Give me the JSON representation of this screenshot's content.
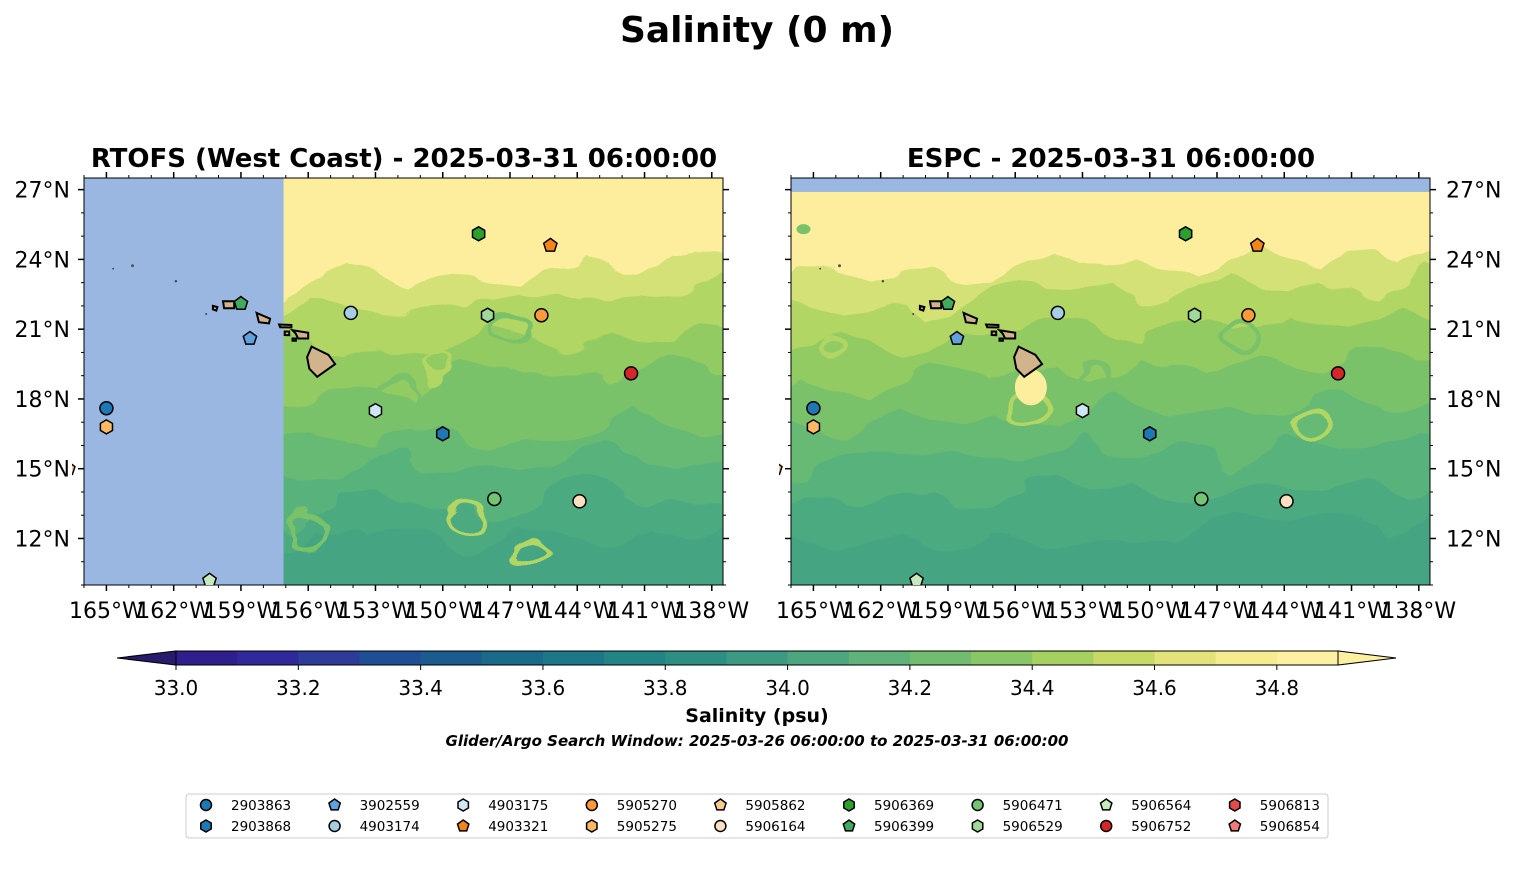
{
  "figure": {
    "title": "Salinity (0 m)",
    "search_window": "Glider/Argo Search Window: 2025-03-26 06:00:00 to 2025-03-31 06:00:00"
  },
  "map_extent": {
    "lon_min": -166.0,
    "lon_max": -137.5,
    "lat_min": 10.0,
    "lat_max": 27.5
  },
  "ticks": {
    "lon": [
      {
        "value": -165,
        "label": "165°W"
      },
      {
        "value": -162,
        "label": "162°W"
      },
      {
        "value": -159,
        "label": "159°W"
      },
      {
        "value": -156,
        "label": "156°W"
      },
      {
        "value": -153,
        "label": "153°W"
      },
      {
        "value": -150,
        "label": "150°W"
      },
      {
        "value": -147,
        "label": "147°W"
      },
      {
        "value": -144,
        "label": "144°W"
      },
      {
        "value": -141,
        "label": "141°W"
      },
      {
        "value": -138,
        "label": "138°W"
      }
    ],
    "lat": [
      {
        "value": 27,
        "label": "27°N"
      },
      {
        "value": 24,
        "label": "24°N"
      },
      {
        "value": 21,
        "label": "21°N"
      },
      {
        "value": 18,
        "label": "18°N"
      },
      {
        "value": 15,
        "label": "15°N"
      },
      {
        "value": 12,
        "label": "12°N"
      }
    ]
  },
  "panels": [
    {
      "id": "rtofs",
      "title": "RTOFS (West Coast) - 2025-03-31 06:00:00",
      "no_data_lon_max": -157.1
    },
    {
      "id": "espc",
      "title": "ESPC - 2025-03-31 06:00:00",
      "no_data_lat_min": 26.9
    }
  ],
  "colorbar": {
    "label": "Salinity (psu)",
    "min": 32.9,
    "max": 34.9,
    "step": 0.1,
    "ticks": [
      {
        "value": 33.0,
        "label": "33.0"
      },
      {
        "value": 33.2,
        "label": "33.2"
      },
      {
        "value": 33.4,
        "label": "33.4"
      },
      {
        "value": 33.6,
        "label": "33.6"
      },
      {
        "value": 33.8,
        "label": "33.8"
      },
      {
        "value": 34.0,
        "label": "34.0"
      },
      {
        "value": 34.2,
        "label": "34.2"
      },
      {
        "value": 34.4,
        "label": "34.4"
      },
      {
        "value": 34.6,
        "label": "34.6"
      },
      {
        "value": 34.8,
        "label": "34.8"
      }
    ],
    "colors": [
      "#2a1a6e",
      "#2e1f8c",
      "#30299a",
      "#2d3c99",
      "#1f4e94",
      "#1a5c8e",
      "#1a6a8a",
      "#1d7788",
      "#238485",
      "#2d8f84",
      "#3c9a83",
      "#4ca680",
      "#5fb27a",
      "#72bc70",
      "#89c666",
      "#a6d05f",
      "#c6da65",
      "#e3e37a",
      "#f5ec8f",
      "#fdf0a0"
    ]
  },
  "floats": [
    {
      "id": "2903863",
      "lon": -165.0,
      "lat": 17.6,
      "shape": "circle",
      "color": "#1f78b4"
    },
    {
      "id": "2903868",
      "lon": -150.0,
      "lat": 16.5,
      "shape": "hexagon",
      "color": "#1f78b4"
    },
    {
      "id": "3902559",
      "lon": -158.6,
      "lat": 20.6,
      "shape": "pentagon",
      "color": "#5fa2dd"
    },
    {
      "id": "4903174",
      "lon": -154.1,
      "lat": 21.7,
      "shape": "circle",
      "color": "#a6cee3"
    },
    {
      "id": "4903175",
      "lon": -153.0,
      "lat": 17.5,
      "shape": "hexagon",
      "color": "#cfe6f3"
    },
    {
      "id": "4903321",
      "lon": -145.2,
      "lat": 24.6,
      "shape": "pentagon",
      "color": "#f58518"
    },
    {
      "id": "5905270",
      "lon": -145.6,
      "lat": 21.6,
      "shape": "circle",
      "color": "#fb9a39"
    },
    {
      "id": "5905275",
      "lon": -165.0,
      "lat": 16.8,
      "shape": "hexagon",
      "color": "#fdb863"
    },
    {
      "id": "5905862",
      "lon": -166.7,
      "lat": 15.0,
      "shape": "pentagon",
      "color": "#fdcb8e"
    },
    {
      "id": "5906164",
      "lon": -143.9,
      "lat": 13.6,
      "shape": "circle",
      "color": "#fee0c0"
    },
    {
      "id": "5906369",
      "lon": -148.4,
      "lat": 25.1,
      "shape": "hexagon",
      "color": "#2ca02c"
    },
    {
      "id": "5906399",
      "lon": -159.0,
      "lat": 22.1,
      "shape": "pentagon",
      "color": "#41ab5d"
    },
    {
      "id": "5906471",
      "lon": -147.7,
      "lat": 13.7,
      "shape": "circle",
      "color": "#74c476"
    },
    {
      "id": "5906529",
      "lon": -148.0,
      "lat": 21.6,
      "shape": "hexagon",
      "color": "#a1d99b"
    },
    {
      "id": "5906564",
      "lon": -160.4,
      "lat": 10.2,
      "shape": "pentagon",
      "color": "#c7e9c0"
    },
    {
      "id": "5906752",
      "lon": -141.6,
      "lat": 19.1,
      "shape": "circle",
      "color": "#d62728"
    },
    {
      "id": "5906813",
      "lon": -141.6,
      "lat": 19.1,
      "shape": "hexagon",
      "color": "#e34a4a"
    },
    {
      "id": "5906854",
      "lon": -141.6,
      "lat": 19.1,
      "shape": "pentagon",
      "color": "#f07a7a"
    }
  ],
  "legend_columns": [
    [
      "2903863",
      "2903868"
    ],
    [
      "3902559",
      "4903174"
    ],
    [
      "4903175",
      "4903321"
    ],
    [
      "5905270",
      "5905275"
    ],
    [
      "5905862",
      "5906164"
    ],
    [
      "5906369",
      "5906399"
    ],
    [
      "5906471",
      "5906529"
    ],
    [
      "5906564",
      "5906752"
    ],
    [
      "5906813",
      "5906854"
    ]
  ],
  "islands": [
    {
      "name": "Niihau",
      "lon": -160.15,
      "lat": 21.9
    },
    {
      "name": "Kauai",
      "lon": -159.55,
      "lat": 22.07
    },
    {
      "name": "Oahu",
      "lon": -158.0,
      "lat": 21.48
    },
    {
      "name": "Molokai",
      "lon": -157.0,
      "lat": 21.13
    },
    {
      "name": "Lanai",
      "lon": -156.93,
      "lat": 20.83
    },
    {
      "name": "Maui",
      "lon": -156.3,
      "lat": 20.8
    },
    {
      "name": "Kahoolawe",
      "lon": -156.6,
      "lat": 20.55
    },
    {
      "name": "Hawaii",
      "lon": -155.5,
      "lat": 19.6
    },
    {
      "name": "Nihoa",
      "lon": -161.9,
      "lat": 23.06
    },
    {
      "name": "Necker",
      "lon": -164.7,
      "lat": 23.6
    },
    {
      "name": "Kaula",
      "lon": -160.55,
      "lat": 21.65
    }
  ]
}
